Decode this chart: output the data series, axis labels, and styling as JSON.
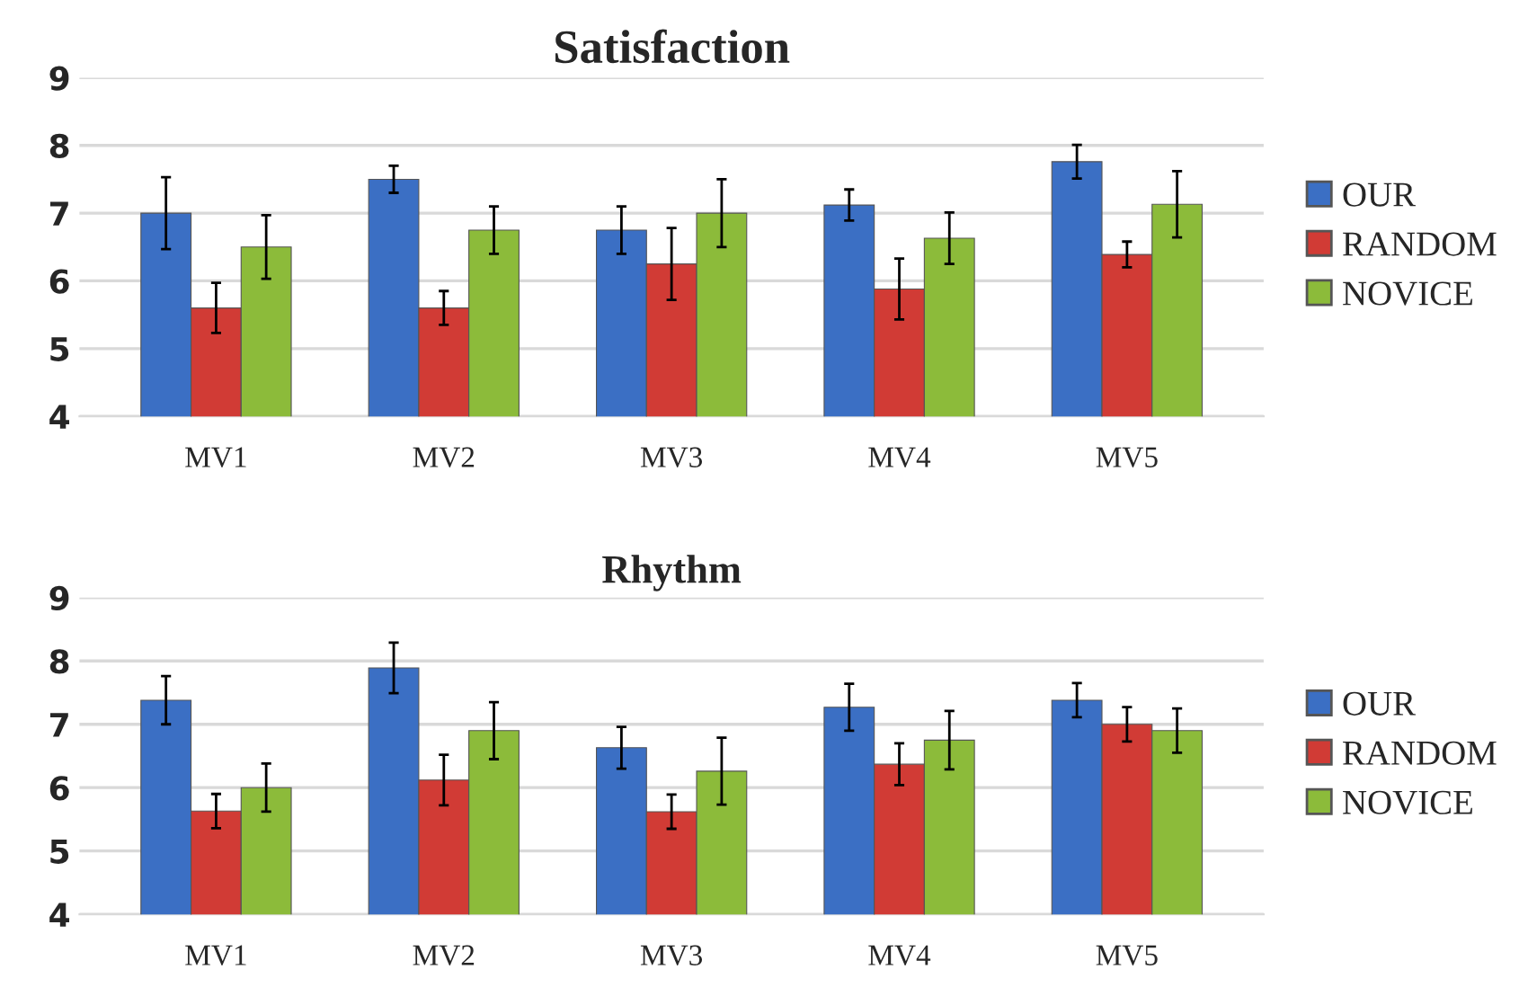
{
  "chart_data": [
    {
      "type": "bar",
      "title": "Satisfaction",
      "categories": [
        "MV1",
        "MV2",
        "MV3",
        "MV4",
        "MV5"
      ],
      "ylim": [
        4,
        9
      ],
      "yticks": [
        4,
        5,
        6,
        7,
        8,
        9
      ],
      "grid": "y",
      "legend": "right",
      "series": [
        {
          "name": "OUR",
          "color": "#3b6fc4",
          "values": [
            7.0,
            7.5,
            6.75,
            7.12,
            7.76
          ],
          "errors": [
            0.53,
            0.2,
            0.35,
            0.23,
            0.25
          ]
        },
        {
          "name": "RANDOM",
          "color": "#d13b35",
          "values": [
            5.6,
            5.6,
            6.25,
            5.88,
            6.39
          ],
          "errors": [
            0.37,
            0.25,
            0.53,
            0.45,
            0.19
          ]
        },
        {
          "name": "NOVICE",
          "color": "#8cbb3a",
          "values": [
            6.5,
            6.75,
            7.0,
            6.63,
            7.13
          ],
          "errors": [
            0.47,
            0.35,
            0.5,
            0.38,
            0.49
          ]
        }
      ]
    },
    {
      "type": "bar",
      "title": "Rhythm",
      "categories": [
        "MV1",
        "MV2",
        "MV3",
        "MV4",
        "MV5"
      ],
      "ylim": [
        4,
        9
      ],
      "yticks": [
        4,
        5,
        6,
        7,
        8,
        9
      ],
      "grid": "y",
      "legend": "right",
      "series": [
        {
          "name": "OUR",
          "color": "#3b6fc4",
          "values": [
            7.38,
            7.89,
            6.63,
            7.27,
            7.38
          ],
          "errors": [
            0.38,
            0.4,
            0.33,
            0.37,
            0.27
          ]
        },
        {
          "name": "RANDOM",
          "color": "#d13b35",
          "values": [
            5.63,
            6.12,
            5.62,
            6.37,
            7.0
          ],
          "errors": [
            0.27,
            0.4,
            0.27,
            0.33,
            0.27
          ]
        },
        {
          "name": "NOVICE",
          "color": "#8cbb3a",
          "values": [
            6.0,
            6.9,
            6.26,
            6.75,
            6.9
          ],
          "errors": [
            0.38,
            0.45,
            0.53,
            0.46,
            0.35
          ]
        }
      ]
    }
  ]
}
